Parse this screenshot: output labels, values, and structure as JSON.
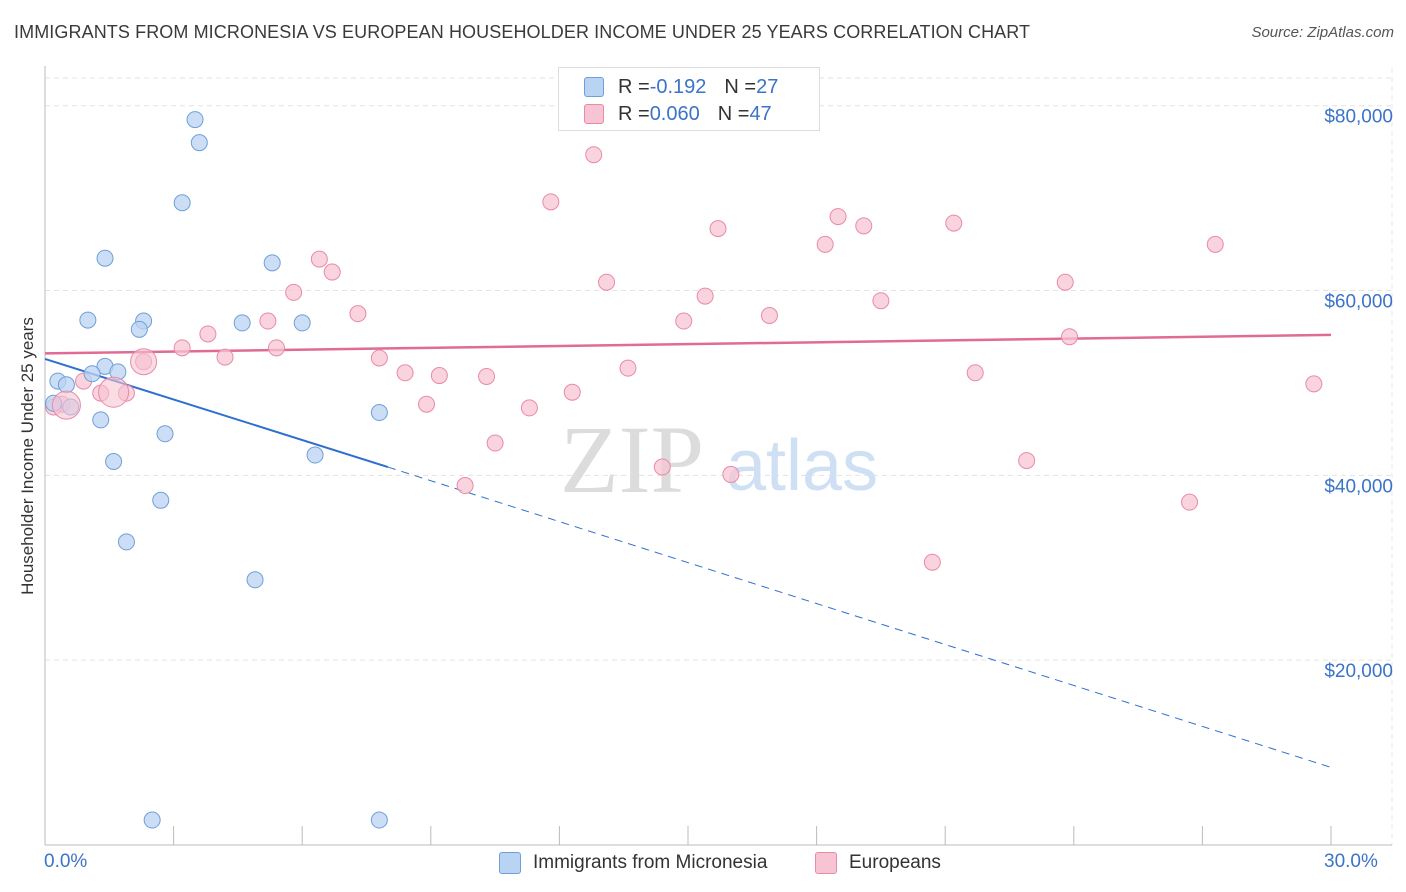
{
  "header": {
    "title": "IMMIGRANTS FROM MICRONESIA VS EUROPEAN HOUSEHOLDER INCOME UNDER 25 YEARS CORRELATION CHART",
    "source": "Source: ZipAtlas.com"
  },
  "legend": {
    "series1": {
      "r_label": "R = ",
      "r_value": "-0.192",
      "n_label": "N = ",
      "n_value": "27"
    },
    "series2": {
      "r_label": "R = ",
      "r_value": "0.060",
      "n_label": "N = ",
      "n_value": "47"
    }
  },
  "watermark": {
    "zip": "ZIP",
    "atlas": "atlas"
  },
  "colors": {
    "blue_fill": "#b9d3f2",
    "blue_stroke": "#6f9fd8",
    "blue_line": "#2f6fd0",
    "pink_fill": "#f7c4d3",
    "pink_stroke": "#e98aa8",
    "pink_line": "#e06b94",
    "tick_text": "#3a73c8",
    "grid": "#e3e3e3"
  },
  "chart_data": {
    "type": "scatter",
    "title": "IMMIGRANTS FROM MICRONESIA VS EUROPEAN HOUSEHOLDER INCOME UNDER 25 YEARS CORRELATION CHART",
    "xlabel": "",
    "ylabel": "Householder Income Under 25 years",
    "xlim": [
      0,
      30
    ],
    "ylim": [
      0,
      83000
    ],
    "x_tick_labels": [
      "0.0%",
      "30.0%"
    ],
    "y_ticks": [
      20000,
      40000,
      60000,
      80000
    ],
    "y_tick_labels": [
      "$20,000",
      "$40,000",
      "$60,000",
      "$80,000"
    ],
    "legend_position": "bottom",
    "series": [
      {
        "name": "Immigrants from Micronesia",
        "color": "#b9d3f2",
        "points": [
          [
            3.5,
            78500
          ],
          [
            3.6,
            76000
          ],
          [
            3.2,
            69500
          ],
          [
            1.4,
            63500
          ],
          [
            5.3,
            63000
          ],
          [
            1.0,
            56800
          ],
          [
            2.3,
            56700
          ],
          [
            2.2,
            55800
          ],
          [
            4.6,
            56500
          ],
          [
            6.0,
            56500
          ],
          [
            1.4,
            51800
          ],
          [
            1.7,
            51200
          ],
          [
            1.1,
            51000
          ],
          [
            0.3,
            50200
          ],
          [
            0.5,
            49800
          ],
          [
            0.2,
            47800
          ],
          [
            0.6,
            47400
          ],
          [
            1.3,
            46000
          ],
          [
            7.8,
            46800
          ],
          [
            2.8,
            44500
          ],
          [
            6.3,
            42200
          ],
          [
            1.6,
            41500
          ],
          [
            2.7,
            37300
          ],
          [
            1.9,
            32800
          ],
          [
            4.9,
            28700
          ],
          [
            2.5,
            2700
          ],
          [
            7.8,
            2700
          ]
        ],
        "trend": {
          "x_start": 0,
          "y_start": 52600,
          "x_solid_end": 8,
          "y_solid_end": 40900,
          "x_end": 30,
          "y_end": 8400
        }
      },
      {
        "name": "Europeans",
        "color": "#f7c4d3",
        "points": [
          [
            12.8,
            74700
          ],
          [
            11.8,
            69600
          ],
          [
            18.5,
            68000
          ],
          [
            15.7,
            66700
          ],
          [
            19.1,
            67000
          ],
          [
            21.2,
            67300
          ],
          [
            18.2,
            65000
          ],
          [
            27.3,
            65000
          ],
          [
            6.4,
            63400
          ],
          [
            6.7,
            62000
          ],
          [
            13.1,
            60900
          ],
          [
            23.8,
            60900
          ],
          [
            5.8,
            59800
          ],
          [
            15.4,
            59400
          ],
          [
            19.5,
            58900
          ],
          [
            7.3,
            57500
          ],
          [
            16.9,
            57300
          ],
          [
            14.9,
            56700
          ],
          [
            5.2,
            56700
          ],
          [
            3.8,
            55300
          ],
          [
            23.9,
            55000
          ],
          [
            3.2,
            53800
          ],
          [
            5.4,
            53800
          ],
          [
            4.2,
            52800
          ],
          [
            7.8,
            52700
          ],
          [
            2.3,
            52300
          ],
          [
            8.4,
            51100
          ],
          [
            13.6,
            51600
          ],
          [
            21.7,
            51100
          ],
          [
            9.2,
            50800
          ],
          [
            10.3,
            50700
          ],
          [
            29.6,
            49900
          ],
          [
            1.9,
            48900
          ],
          [
            1.3,
            48900
          ],
          [
            12.3,
            49000
          ],
          [
            0.9,
            50200
          ],
          [
            0.4,
            47700
          ],
          [
            8.9,
            47700
          ],
          [
            11.3,
            47300
          ],
          [
            10.5,
            43500
          ],
          [
            22.9,
            41600
          ],
          [
            14.4,
            40900
          ],
          [
            16.0,
            40100
          ],
          [
            9.8,
            38900
          ],
          [
            26.7,
            37100
          ],
          [
            20.7,
            30600
          ],
          [
            0.2,
            47400
          ]
        ],
        "trend": {
          "x_start": 0,
          "y_start": 53200,
          "x_end": 30,
          "y_end": 55200
        }
      }
    ]
  }
}
